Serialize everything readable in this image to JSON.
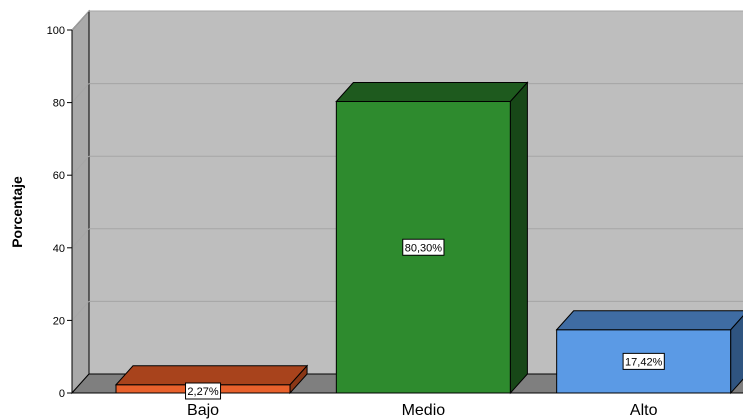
{
  "chart_data": {
    "type": "bar",
    "categories": [
      "Bajo",
      "Medio",
      "Alto"
    ],
    "values": [
      2.27,
      80.3,
      17.42
    ],
    "data_labels": [
      "2,27%",
      "80,30%",
      "17,42%"
    ],
    "ylabel": "Porcentaje",
    "xlabel": "",
    "ylim": [
      0,
      100
    ],
    "yticks": [
      0,
      20,
      40,
      60,
      80,
      100
    ],
    "grid": true,
    "style": "3d",
    "colors": {
      "bars": [
        "#E8612C",
        "#2E8B2E",
        "#5B9AE5"
      ],
      "bar_tops": [
        "#A8431C",
        "#1E5A1E",
        "#3F6CA3"
      ],
      "bar_sides": [
        "#8A3716",
        "#174717",
        "#2F5480"
      ],
      "plot_back": "#BEBEBE",
      "plot_side": "#A9A9A9",
      "plot_floor": "#7F7F7F",
      "gridline": "#A5A5A5"
    }
  }
}
